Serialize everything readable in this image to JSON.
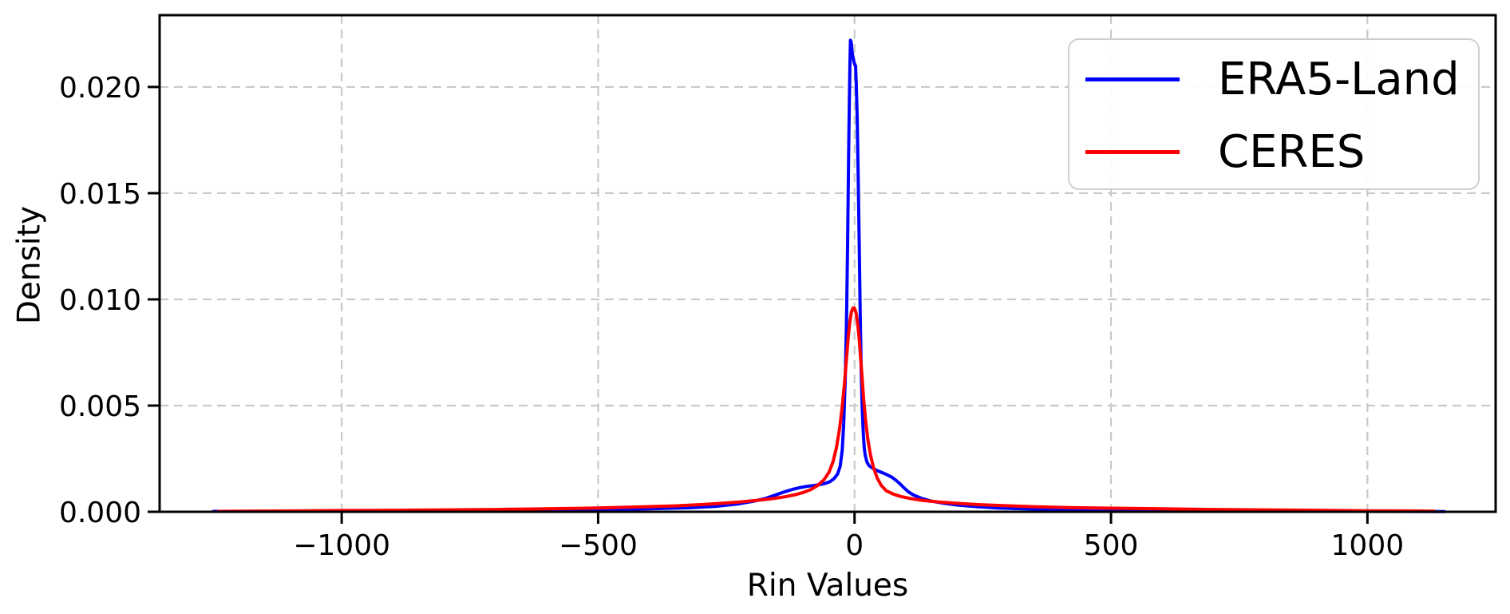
{
  "chart_data": {
    "type": "line",
    "title": "",
    "xlabel": "Rin Values",
    "ylabel": "Density",
    "grid": true,
    "grid_color": "#c9c9c9",
    "legend_position": "upper right",
    "xlim": [
      -1355,
      1250
    ],
    "ylim": [
      0,
      0.02338
    ],
    "xticks": [
      {
        "v": -1000,
        "label": "−1000"
      },
      {
        "v": -500,
        "label": "−500"
      },
      {
        "v": 0,
        "label": "0"
      },
      {
        "v": 500,
        "label": "500"
      },
      {
        "v": 1000,
        "label": "1000"
      }
    ],
    "yticks": [
      {
        "v": 0.0,
        "label": "0.000"
      },
      {
        "v": 0.005,
        "label": "0.005"
      },
      {
        "v": 0.01,
        "label": "0.010"
      },
      {
        "v": 0.015,
        "label": "0.015"
      },
      {
        "v": 0.02,
        "label": "0.020"
      }
    ],
    "series": [
      {
        "name": "ERA5-Land",
        "color": "#0000ff",
        "points": [
          [
            -1250,
            2e-05
          ],
          [
            -1100,
            3e-05
          ],
          [
            -1000,
            4e-05
          ],
          [
            -900,
            5e-05
          ],
          [
            -800,
            5e-05
          ],
          [
            -700,
            7e-05
          ],
          [
            -600,
            9e-05
          ],
          [
            -500,
            0.00011
          ],
          [
            -400,
            0.00014
          ],
          [
            -320,
            0.00019
          ],
          [
            -270,
            0.00026
          ],
          [
            -230,
            0.00036
          ],
          [
            -200,
            0.00048
          ],
          [
            -175,
            0.00062
          ],
          [
            -155,
            0.00078
          ],
          [
            -138,
            0.00093
          ],
          [
            -122,
            0.00105
          ],
          [
            -108,
            0.00113
          ],
          [
            -95,
            0.00119
          ],
          [
            -82,
            0.00123
          ],
          [
            -70,
            0.00127
          ],
          [
            -58,
            0.00133
          ],
          [
            -48,
            0.00142
          ],
          [
            -40,
            0.00156
          ],
          [
            -33,
            0.00178
          ],
          [
            -28,
            0.00214
          ],
          [
            -24,
            0.0029
          ],
          [
            -21,
            0.0042
          ],
          [
            -18,
            0.0064
          ],
          [
            -15.5,
            0.0093
          ],
          [
            -13.5,
            0.0128
          ],
          [
            -11.5,
            0.0168
          ],
          [
            -10,
            0.0195
          ],
          [
            -9,
            0.0212
          ],
          [
            -8,
            0.0222
          ],
          [
            -6.5,
            0.0221
          ],
          [
            -5,
            0.0217
          ],
          [
            -3,
            0.0214
          ],
          [
            -1.5,
            0.0212
          ],
          [
            0.5,
            0.02105
          ],
          [
            2,
            0.021
          ],
          [
            3.5,
            0.02
          ],
          [
            5,
            0.0186
          ],
          [
            7,
            0.016
          ],
          [
            9,
            0.0128
          ],
          [
            11,
            0.0094
          ],
          [
            13,
            0.0066
          ],
          [
            15,
            0.0048
          ],
          [
            17,
            0.0037
          ],
          [
            19,
            0.003
          ],
          [
            21,
            0.00265
          ],
          [
            24,
            0.00235
          ],
          [
            28,
            0.00218
          ],
          [
            34,
            0.00207
          ],
          [
            42,
            0.00196
          ],
          [
            52,
            0.00186
          ],
          [
            62,
            0.00176
          ],
          [
            72,
            0.00164
          ],
          [
            80,
            0.0015
          ],
          [
            88,
            0.00133
          ],
          [
            96,
            0.00114
          ],
          [
            105,
            0.00094
          ],
          [
            115,
            0.00079
          ],
          [
            130,
            0.00064
          ],
          [
            150,
            0.0005
          ],
          [
            175,
            0.0004
          ],
          [
            200,
            0.00032
          ],
          [
            240,
            0.00024
          ],
          [
            280,
            0.00018
          ],
          [
            330,
            0.00014
          ],
          [
            400,
            0.0001
          ],
          [
            500,
            7e-05
          ],
          [
            600,
            5e-05
          ],
          [
            700,
            4e-05
          ],
          [
            850,
            3e-05
          ],
          [
            1000,
            2e-05
          ],
          [
            1150,
            1e-05
          ]
        ]
      },
      {
        "name": "CERES",
        "color": "#ff0000",
        "points": [
          [
            -1240,
            2e-05
          ],
          [
            -1100,
            4e-05
          ],
          [
            -1000,
            6e-05
          ],
          [
            -900,
            7e-05
          ],
          [
            -800,
            9e-05
          ],
          [
            -700,
            0.00011
          ],
          [
            -600,
            0.00014
          ],
          [
            -500,
            0.00018
          ],
          [
            -420,
            0.00023
          ],
          [
            -350,
            0.00028
          ],
          [
            -300,
            0.00034
          ],
          [
            -260,
            0.0004
          ],
          [
            -220,
            0.00047
          ],
          [
            -190,
            0.00054
          ],
          [
            -160,
            0.00062
          ],
          [
            -135,
            0.00071
          ],
          [
            -115,
            0.00081
          ],
          [
            -100,
            0.00091
          ],
          [
            -85,
            0.00105
          ],
          [
            -72,
            0.00124
          ],
          [
            -60,
            0.0015
          ],
          [
            -50,
            0.00185
          ],
          [
            -42,
            0.00235
          ],
          [
            -35,
            0.00305
          ],
          [
            -29,
            0.00395
          ],
          [
            -24,
            0.00495
          ],
          [
            -20,
            0.00595
          ],
          [
            -16,
            0.00715
          ],
          [
            -12,
            0.0083
          ],
          [
            -9,
            0.009
          ],
          [
            -6,
            0.00942
          ],
          [
            -3,
            0.0096
          ],
          [
            0,
            0.00958
          ],
          [
            3,
            0.00935
          ],
          [
            6,
            0.00888
          ],
          [
            9,
            0.00815
          ],
          [
            12,
            0.00722
          ],
          [
            15,
            0.00622
          ],
          [
            18,
            0.00522
          ],
          [
            22,
            0.0042
          ],
          [
            26,
            0.0034
          ],
          [
            31,
            0.00268
          ],
          [
            37,
            0.00208
          ],
          [
            44,
            0.0016
          ],
          [
            52,
            0.00124
          ],
          [
            62,
            0.00099
          ],
          [
            75,
            0.00084
          ],
          [
            90,
            0.00072
          ],
          [
            110,
            0.00062
          ],
          [
            135,
            0.00053
          ],
          [
            165,
            0.00046
          ],
          [
            200,
            0.0004
          ],
          [
            240,
            0.00034
          ],
          [
            290,
            0.00029
          ],
          [
            350,
            0.00024
          ],
          [
            420,
            0.0002
          ],
          [
            500,
            0.00017
          ],
          [
            600,
            0.00014
          ],
          [
            700,
            0.00011
          ],
          [
            800,
            9e-05
          ],
          [
            900,
            7e-05
          ],
          [
            1000,
            5e-05
          ],
          [
            1080,
            4e-05
          ],
          [
            1130,
            3e-05
          ]
        ]
      }
    ]
  }
}
